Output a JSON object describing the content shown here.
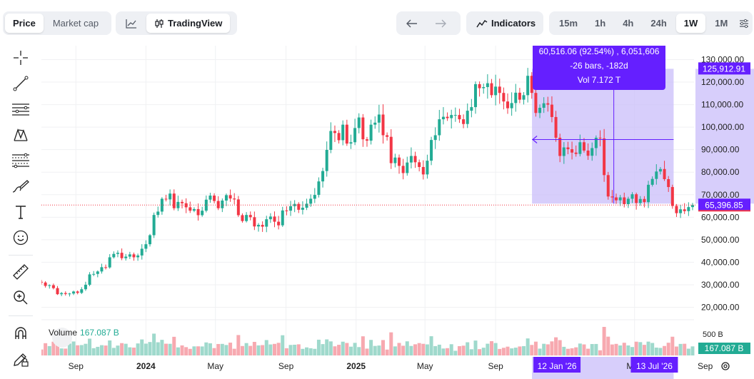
{
  "toolbar_top": {
    "view_tabs": [
      {
        "label": "Price",
        "active": true
      },
      {
        "label": "Market cap",
        "active": false
      }
    ],
    "chart_modes": [
      {
        "icon": "line-chart-icon",
        "label": "",
        "active": false
      },
      {
        "icon": "candlestick-icon",
        "label": "TradingView",
        "active": true
      }
    ],
    "undo_icon": "arrow-left-icon",
    "redo_icon": "arrow-right-icon",
    "indicators_label": "Indicators",
    "intervals": [
      {
        "label": "15m",
        "active": false
      },
      {
        "label": "1h",
        "active": false
      },
      {
        "label": "4h",
        "active": false
      },
      {
        "label": "24h",
        "active": false
      },
      {
        "label": "1W",
        "active": true
      },
      {
        "label": "1M",
        "active": false
      }
    ],
    "settings_icon": "sliders-icon"
  },
  "drawing_tools": [
    "crosshair-icon",
    "trend-line-icon",
    "horizontal-lines-icon",
    "pattern-icon",
    "fib-retracement-icon",
    "brush-icon",
    "text-icon",
    "emoji-icon",
    "ruler-icon",
    "zoom-in-icon",
    "magnet-icon",
    "lock-pencil-icon"
  ],
  "colors": {
    "up": "#22ab94",
    "down": "#f23645",
    "up_volume": "#9fd9cc",
    "down_volume": "#f7a9b0",
    "measure_fill": "#c9bdfa",
    "measure_accent": "#651fff",
    "current_price": "#f23645",
    "grid": "#f0f1f3"
  },
  "measure_tooltip": {
    "line1": "60,516.06 (92.54%) , 6,051,606",
    "line2": "-26 bars, -182d",
    "line3": "Vol 7.172 T"
  },
  "price_labels": {
    "measure_top": "125,912.91",
    "current": "65,396.85"
  },
  "volume": {
    "label": "Volume",
    "value": "167.087 B",
    "axis_tick": "500 B",
    "axis_label": "167.087 B"
  },
  "time_labels": {
    "measure_start": "12 Jan '26",
    "measure_end": "13 Jul '26"
  },
  "chart_data": {
    "type": "candlestick",
    "interval": "1W",
    "y_axis": {
      "ticks": [
        "130,000.00",
        "120,000.00",
        "110,000.00",
        "100,000.00",
        "90,000.00",
        "80,000.00",
        "70,000.00",
        "60,000.00",
        "50,000.00",
        "40,000.00",
        "30,000.00",
        "20,000.00"
      ],
      "tick_values": [
        130000,
        120000,
        110000,
        100000,
        90000,
        80000,
        70000,
        60000,
        50000,
        40000,
        30000,
        20000
      ],
      "range": [
        15500,
        135000
      ]
    },
    "x_axis": {
      "ticks": [
        "Sep",
        "2024",
        "May",
        "Sep",
        "2025",
        "May",
        "Sep",
        "May",
        "Sep"
      ],
      "range": [
        "2023-07-03",
        "2026-10-05"
      ]
    },
    "current_price": 65396.85,
    "measure": {
      "from_date": "2026-01-12",
      "to_date": "2026-07-13",
      "from_price": 125912.91,
      "to_price": 65396.85
    },
    "close_series": [
      [
        31000,
        29500,
        29800,
        28500,
        25800,
        26300,
        25900,
        26100,
        27000,
        26400,
        28000,
        30000,
        34600,
        34800,
        35900,
        37800,
        37700,
        42200,
        43700,
        44200,
        41800,
        42500,
        43500,
        42200,
        43000,
        46000,
        48000,
        52000,
        61000,
        62500,
        68200,
        67900,
        70500,
        64000,
        66800,
        66200,
        64400,
        62900,
        63600,
        60900,
        62900,
        67800,
        69600,
        67200,
        64000,
        67400,
        69800,
        68300,
        67900,
        60900,
        58300,
        61000,
        60000,
        55900,
        56600,
        55800,
        59100,
        60300,
        58000,
        56400,
        63000,
        62900,
        64900,
        65900,
        63300,
        64200,
        66000,
        68200,
        69900,
        75900,
        80500,
        89900,
        98300,
        97400,
        94200,
        101100,
        92700,
        93300,
        99600,
        104300,
        94600,
        94000,
        101100,
        102000,
        105600,
        96400,
        95700,
        84000,
        86500,
        82800,
        79600,
        84300,
        87200,
        84400,
        82300,
        79000,
        85100,
        94300,
        96400,
        103500,
        104600,
        104000,
        105400,
        105400,
        103500,
        101400,
        107300,
        108900,
        119100,
        117300,
        117800,
        119500,
        114200,
        118000,
        115200,
        111400,
        108400,
        110700,
        115300,
        112200,
        114200,
        122800,
        115200,
        106300,
        108600,
        110600,
        110000,
        104500,
        95300,
        87200,
        91000,
        90200,
        88700,
        88100,
        93300,
        89600,
        87300,
        90700,
        95300,
        95000,
        78700,
        69200,
        68800,
        67500,
        68800,
        65800,
        68200,
        70200,
        66300,
        68100,
        66700,
        74400,
        77000,
        80300,
        81400,
        76900,
        73400,
        65000,
        61800,
        63500,
        62700,
        64500,
        65400
      ]
    ]
  }
}
